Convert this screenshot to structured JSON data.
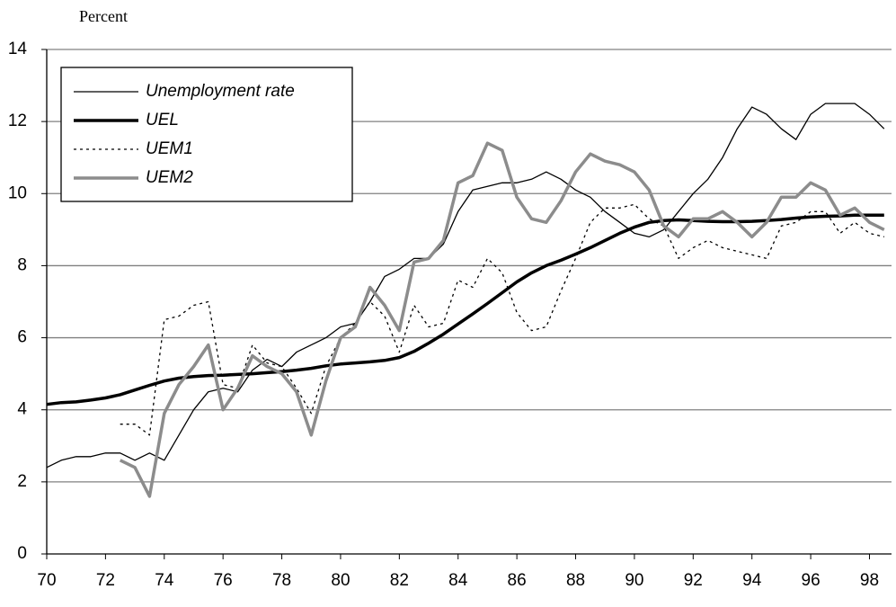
{
  "chart_data": {
    "type": "line",
    "y_label": "Percent",
    "x": [
      70,
      70.5,
      71,
      71.5,
      72,
      72.5,
      73,
      73.5,
      74,
      74.5,
      75,
      75.5,
      76,
      76.5,
      77,
      77.5,
      78,
      78.5,
      79,
      79.5,
      80,
      80.5,
      81,
      81.5,
      82,
      82.5,
      83,
      83.5,
      84,
      84.5,
      85,
      85.5,
      86,
      86.5,
      87,
      87.5,
      88,
      88.5,
      89,
      89.5,
      90,
      90.5,
      91,
      91.5,
      92,
      92.5,
      93,
      93.5,
      94,
      94.5,
      95,
      95.5,
      96,
      96.5,
      97,
      97.5,
      98,
      98.5
    ],
    "series": [
      {
        "name": "Unemployment rate",
        "color": "#000000",
        "width": 1.3,
        "style": "solid",
        "values": [
          2.4,
          2.6,
          2.7,
          2.7,
          2.8,
          2.8,
          2.6,
          2.8,
          2.6,
          3.3,
          4.0,
          4.5,
          4.6,
          4.5,
          5.1,
          5.4,
          5.2,
          5.6,
          5.8,
          6.0,
          6.3,
          6.4,
          7.0,
          7.7,
          7.9,
          8.2,
          8.2,
          8.6,
          9.5,
          10.1,
          10.2,
          10.3,
          10.3,
          10.4,
          10.6,
          10.4,
          10.1,
          9.9,
          9.5,
          9.2,
          8.9,
          8.8,
          9.0,
          9.5,
          10.0,
          10.4,
          11.0,
          11.8,
          12.4,
          12.2,
          11.8,
          11.5,
          12.2,
          12.5,
          12.5,
          12.5,
          12.2,
          11.8
        ]
      },
      {
        "name": "UEL",
        "color": "#000000",
        "width": 3.5,
        "style": "solid",
        "values": [
          4.15,
          4.2,
          4.22,
          4.27,
          4.33,
          4.42,
          4.55,
          4.68,
          4.8,
          4.88,
          4.92,
          4.95,
          4.96,
          4.98,
          5.0,
          5.03,
          5.06,
          5.1,
          5.15,
          5.22,
          5.27,
          5.3,
          5.33,
          5.37,
          5.45,
          5.62,
          5.85,
          6.1,
          6.38,
          6.66,
          6.95,
          7.25,
          7.55,
          7.8,
          8.0,
          8.15,
          8.32,
          8.5,
          8.7,
          8.9,
          9.07,
          9.2,
          9.25,
          9.27,
          9.25,
          9.23,
          9.22,
          9.22,
          9.23,
          9.25,
          9.28,
          9.32,
          9.35,
          9.37,
          9.38,
          9.4,
          9.4,
          9.4
        ]
      },
      {
        "name": "UEM1",
        "color": "#000000",
        "width": 1.3,
        "style": "dotted",
        "values": [
          null,
          null,
          null,
          null,
          null,
          3.6,
          3.6,
          3.3,
          6.5,
          6.6,
          6.9,
          7.0,
          4.7,
          4.6,
          5.8,
          5.3,
          5.2,
          4.6,
          3.9,
          5.2,
          6.0,
          6.4,
          7.0,
          6.6,
          5.6,
          6.9,
          6.3,
          6.4,
          7.6,
          7.4,
          8.2,
          7.8,
          6.7,
          6.2,
          6.3,
          7.3,
          8.2,
          9.2,
          9.6,
          9.6,
          9.7,
          9.3,
          9.1,
          8.2,
          8.5,
          8.7,
          8.5,
          8.4,
          8.3,
          8.2,
          9.1,
          9.2,
          9.5,
          9.5,
          8.9,
          9.2,
          8.9,
          8.8
        ]
      },
      {
        "name": "UEM2",
        "color": "#8c8c8c",
        "width": 3.5,
        "style": "solid",
        "values": [
          null,
          null,
          null,
          null,
          null,
          2.6,
          2.4,
          1.6,
          3.9,
          4.7,
          5.2,
          5.8,
          4.0,
          4.6,
          5.5,
          5.2,
          5.0,
          4.5,
          3.3,
          4.8,
          6.0,
          6.3,
          7.4,
          6.9,
          6.2,
          8.1,
          8.2,
          8.7,
          10.3,
          10.5,
          11.4,
          11.2,
          9.9,
          9.3,
          9.2,
          9.8,
          10.6,
          11.1,
          10.9,
          10.8,
          10.6,
          10.1,
          9.1,
          8.8,
          9.3,
          9.3,
          9.5,
          9.2,
          8.8,
          9.2,
          9.9,
          9.9,
          10.3,
          10.1,
          9.4,
          9.6,
          9.2,
          9.0
        ]
      }
    ],
    "xlim": [
      70,
      98.75
    ],
    "xticks": [
      70,
      72,
      74,
      76,
      78,
      80,
      82,
      84,
      86,
      88,
      90,
      92,
      94,
      96,
      98
    ],
    "ylim": [
      0,
      14
    ],
    "yticks": [
      0,
      2,
      4,
      6,
      8,
      10,
      12,
      14
    ],
    "grid": true,
    "legend": "upper left"
  }
}
